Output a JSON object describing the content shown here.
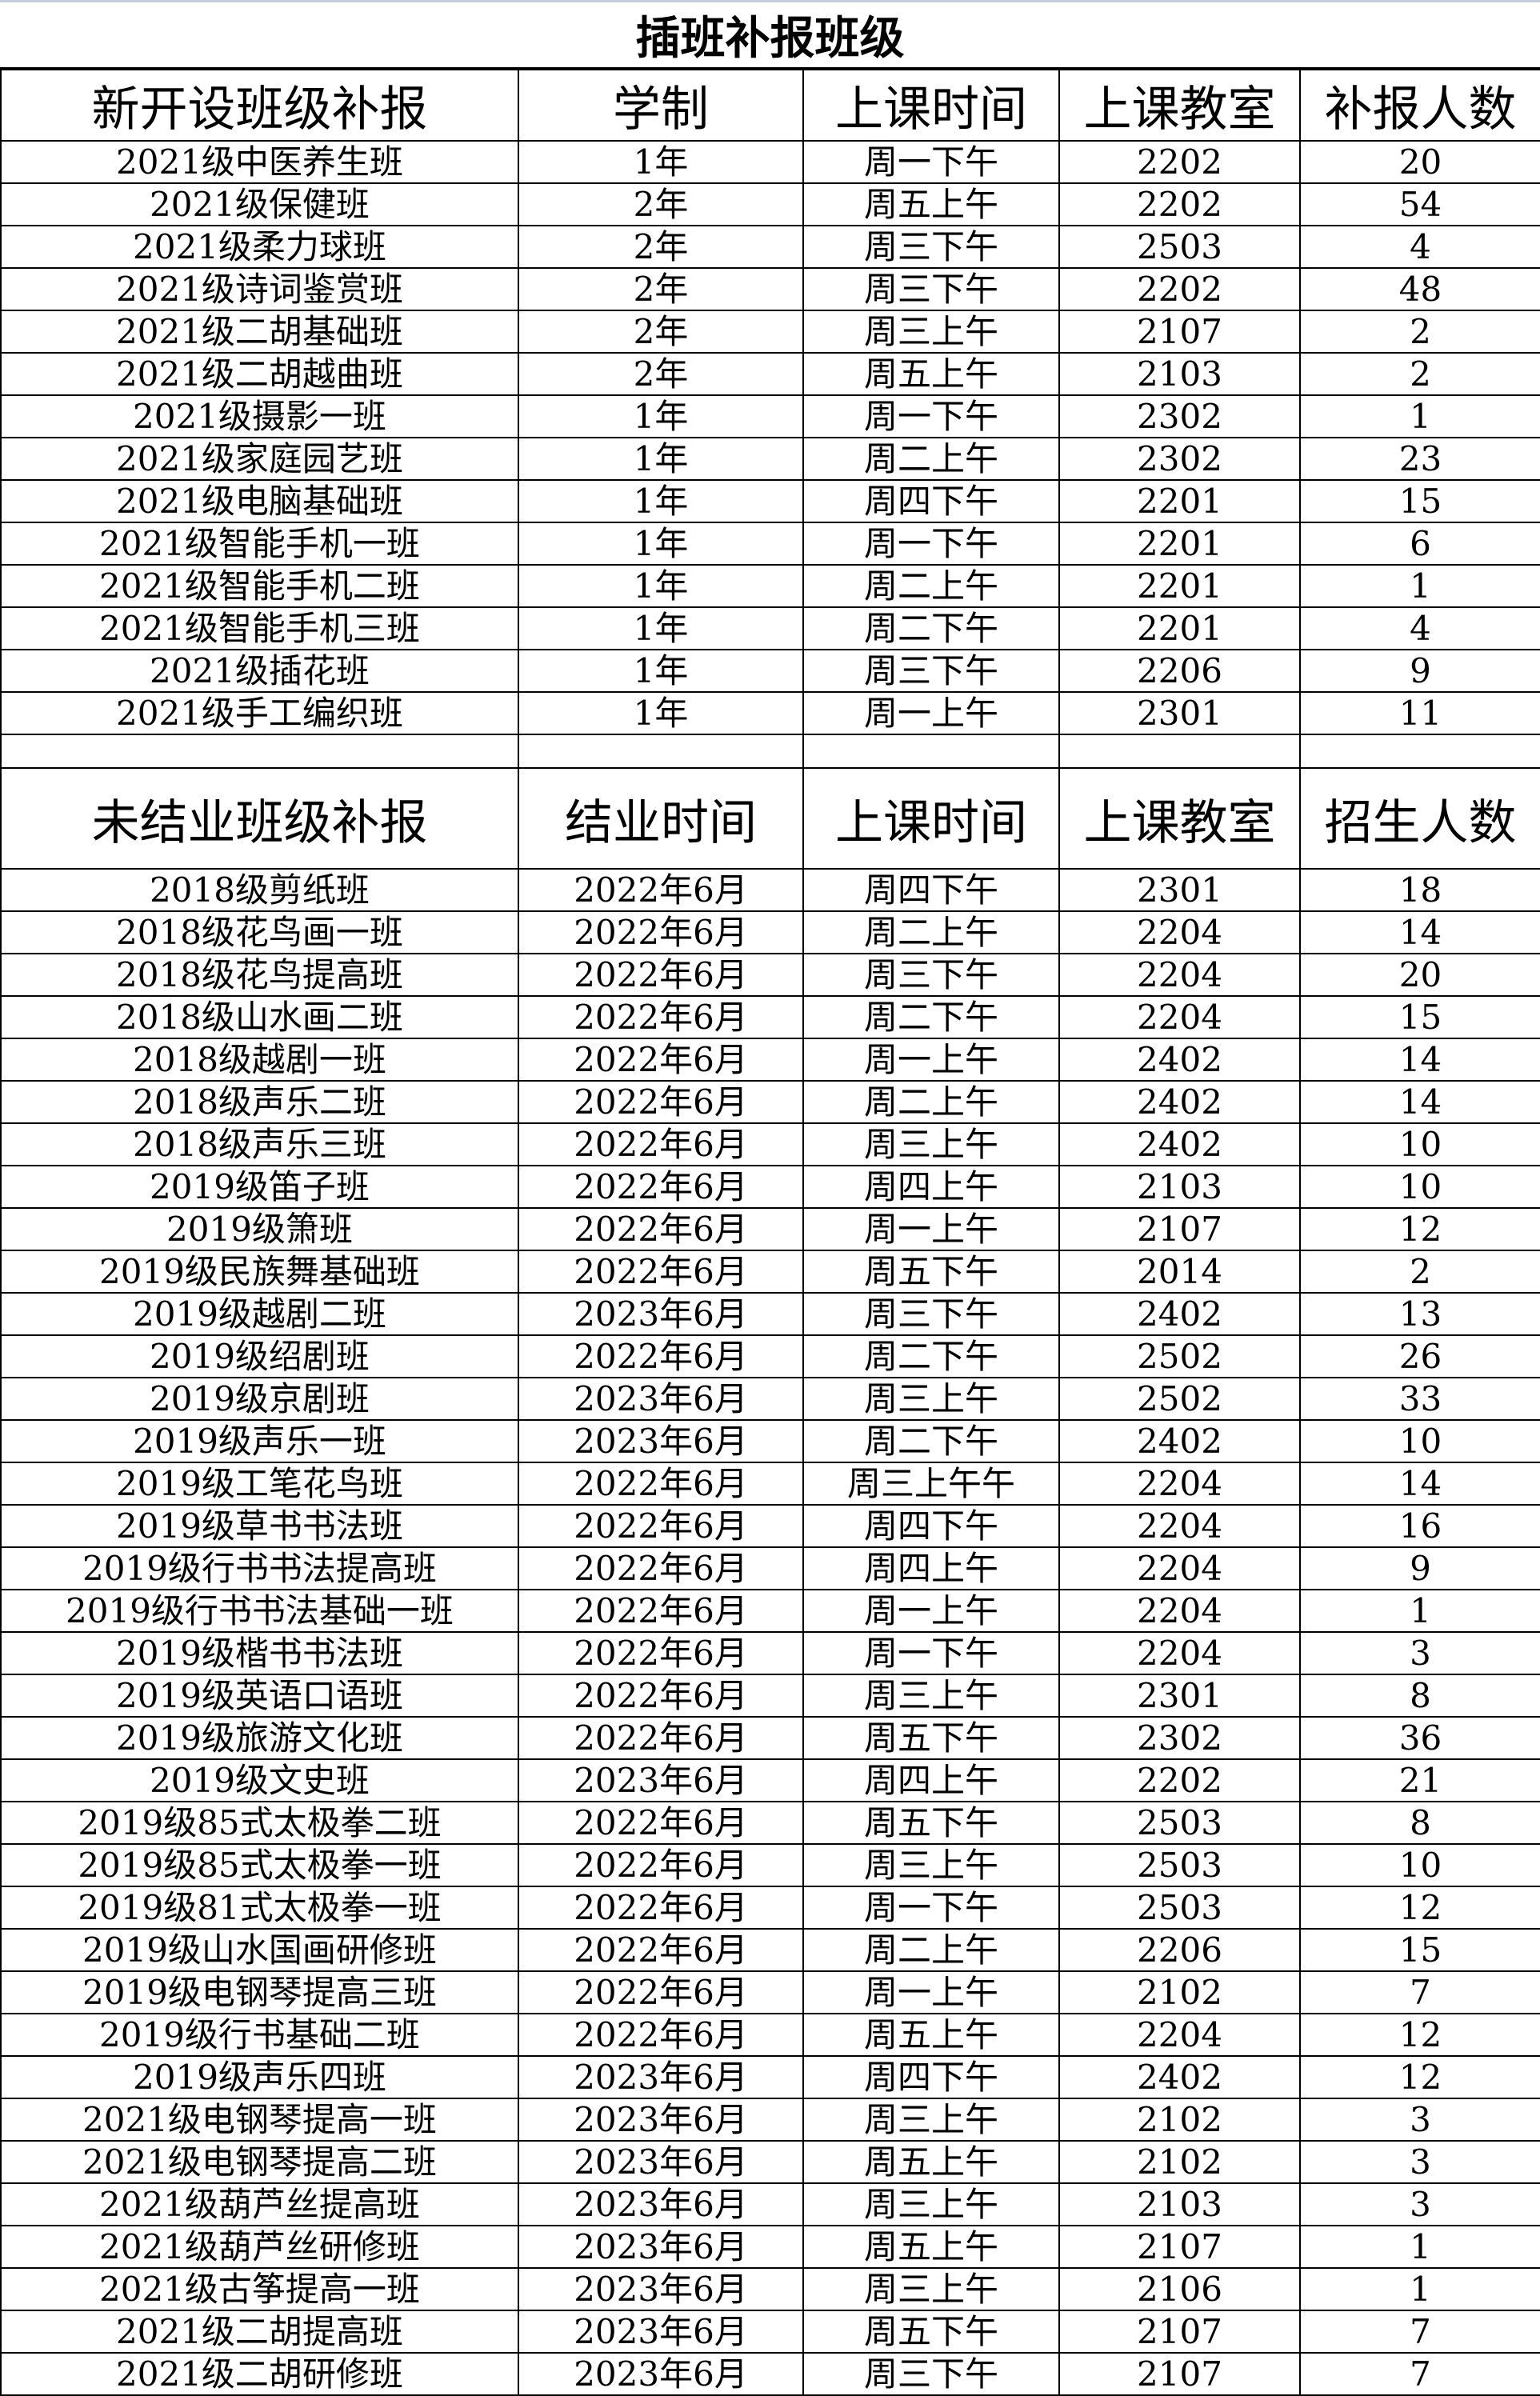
{
  "title": "插班补报班级",
  "section1": {
    "headers": [
      "新开设班级补报",
      "学制",
      "上课时间",
      "上课教室",
      "补报人数"
    ],
    "rows": [
      [
        "2021级中医养生班",
        "1年",
        "周一下午",
        "2202",
        "20"
      ],
      [
        "2021级保健班",
        "2年",
        "周五上午",
        "2202",
        "54"
      ],
      [
        "2021级柔力球班",
        "2年",
        "周三下午",
        "2503",
        "4"
      ],
      [
        "2021级诗词鉴赏班",
        "2年",
        "周三下午",
        "2202",
        "48"
      ],
      [
        "2021级二胡基础班",
        "2年",
        "周三上午",
        "2107",
        "2"
      ],
      [
        "2021级二胡越曲班",
        "2年",
        "周五上午",
        "2103",
        "2"
      ],
      [
        "2021级摄影一班",
        "1年",
        "周一下午",
        "2302",
        "1"
      ],
      [
        "2021级家庭园艺班",
        "1年",
        "周二上午",
        "2302",
        "23"
      ],
      [
        "2021级电脑基础班",
        "1年",
        "周四下午",
        "2201",
        "15"
      ],
      [
        "2021级智能手机一班",
        "1年",
        "周一下午",
        "2201",
        "6"
      ],
      [
        "2021级智能手机二班",
        "1年",
        "周二上午",
        "2201",
        "1"
      ],
      [
        "2021级智能手机三班",
        "1年",
        "周二下午",
        "2201",
        "4"
      ],
      [
        "2021级插花班",
        "1年",
        "周三下午",
        "2206",
        "9"
      ],
      [
        "2021级手工编织班",
        "1年",
        "周一上午",
        "2301",
        "11"
      ]
    ]
  },
  "section2": {
    "headers": [
      "未结业班级补报",
      "结业时间",
      "上课时间",
      "上课教室",
      "招生人数"
    ],
    "rows": [
      [
        "2018级剪纸班",
        "2022年6月",
        "周四下午",
        "2301",
        "18"
      ],
      [
        "2018级花鸟画一班",
        "2022年6月",
        "周二上午",
        "2204",
        "14"
      ],
      [
        "2018级花鸟提高班",
        "2022年6月",
        "周三下午",
        "2204",
        "20"
      ],
      [
        "2018级山水画二班",
        "2022年6月",
        "周二下午",
        "2204",
        "15"
      ],
      [
        "2018级越剧一班",
        "2022年6月",
        "周一上午",
        "2402",
        "14"
      ],
      [
        "2018级声乐二班",
        "2022年6月",
        "周二上午",
        "2402",
        "14"
      ],
      [
        "2018级声乐三班",
        "2022年6月",
        "周三上午",
        "2402",
        "10"
      ],
      [
        "2019级笛子班",
        "2022年6月",
        "周四上午",
        "2103",
        "10"
      ],
      [
        "2019级箫班",
        "2022年6月",
        "周一上午",
        "2107",
        "12"
      ],
      [
        "2019级民族舞基础班",
        "2022年6月",
        "周五下午",
        "2014",
        "2"
      ],
      [
        "2019级越剧二班",
        "2023年6月",
        "周三下午",
        "2402",
        "13"
      ],
      [
        "2019级绍剧班",
        "2022年6月",
        "周二下午",
        "2502",
        "26"
      ],
      [
        "2019级京剧班",
        "2023年6月",
        "周三上午",
        "2502",
        "33"
      ],
      [
        "2019级声乐一班",
        "2023年6月",
        "周二下午",
        "2402",
        "10"
      ],
      [
        "2019级工笔花鸟班",
        "2022年6月",
        "周三上午午",
        "2204",
        "14"
      ],
      [
        "2019级草书书法班",
        "2022年6月",
        "周四下午",
        "2204",
        "16"
      ],
      [
        "2019级行书书法提高班",
        "2022年6月",
        "周四上午",
        "2204",
        "9"
      ],
      [
        "2019级行书书法基础一班",
        "2022年6月",
        "周一上午",
        "2204",
        "1"
      ],
      [
        "2019级楷书书法班",
        "2022年6月",
        "周一下午",
        "2204",
        "3"
      ],
      [
        "2019级英语口语班",
        "2022年6月",
        "周三上午",
        "2301",
        "8"
      ],
      [
        "2019级旅游文化班",
        "2022年6月",
        "周五下午",
        "2302",
        "36"
      ],
      [
        "2019级文史班",
        "2023年6月",
        "周四上午",
        "2202",
        "21"
      ],
      [
        "2019级85式太极拳二班",
        "2022年6月",
        "周五下午",
        "2503",
        "8"
      ],
      [
        "2019级85式太极拳一班",
        "2022年6月",
        "周三上午",
        "2503",
        "10"
      ],
      [
        "2019级81式太极拳一班",
        "2022年6月",
        "周一下午",
        "2503",
        "12"
      ],
      [
        "2019级山水国画研修班",
        "2022年6月",
        "周二上午",
        "2206",
        "15"
      ],
      [
        "2019级电钢琴提高三班",
        "2022年6月",
        "周一上午",
        "2102",
        "7"
      ],
      [
        "2019级行书基础二班",
        "2022年6月",
        "周五上午",
        "2204",
        "12"
      ],
      [
        "2019级声乐四班",
        "2023年6月",
        "周四下午",
        "2402",
        "12"
      ],
      [
        "2021级电钢琴提高一班",
        "2023年6月",
        "周三上午",
        "2102",
        "3"
      ],
      [
        "2021级电钢琴提高二班",
        "2023年6月",
        "周五上午",
        "2102",
        "3"
      ],
      [
        "2021级葫芦丝提高班",
        "2023年6月",
        "周三上午",
        "2103",
        "3"
      ],
      [
        "2021级葫芦丝研修班",
        "2023年6月",
        "周五上午",
        "2107",
        "1"
      ],
      [
        "2021级古筝提高一班",
        "2023年6月",
        "周三上午",
        "2106",
        "1"
      ],
      [
        "2021级二胡提高班",
        "2023年6月",
        "周五下午",
        "2107",
        "7"
      ],
      [
        "2021级二胡研修班",
        "2023年6月",
        "周三下午",
        "2107",
        "7"
      ]
    ]
  }
}
